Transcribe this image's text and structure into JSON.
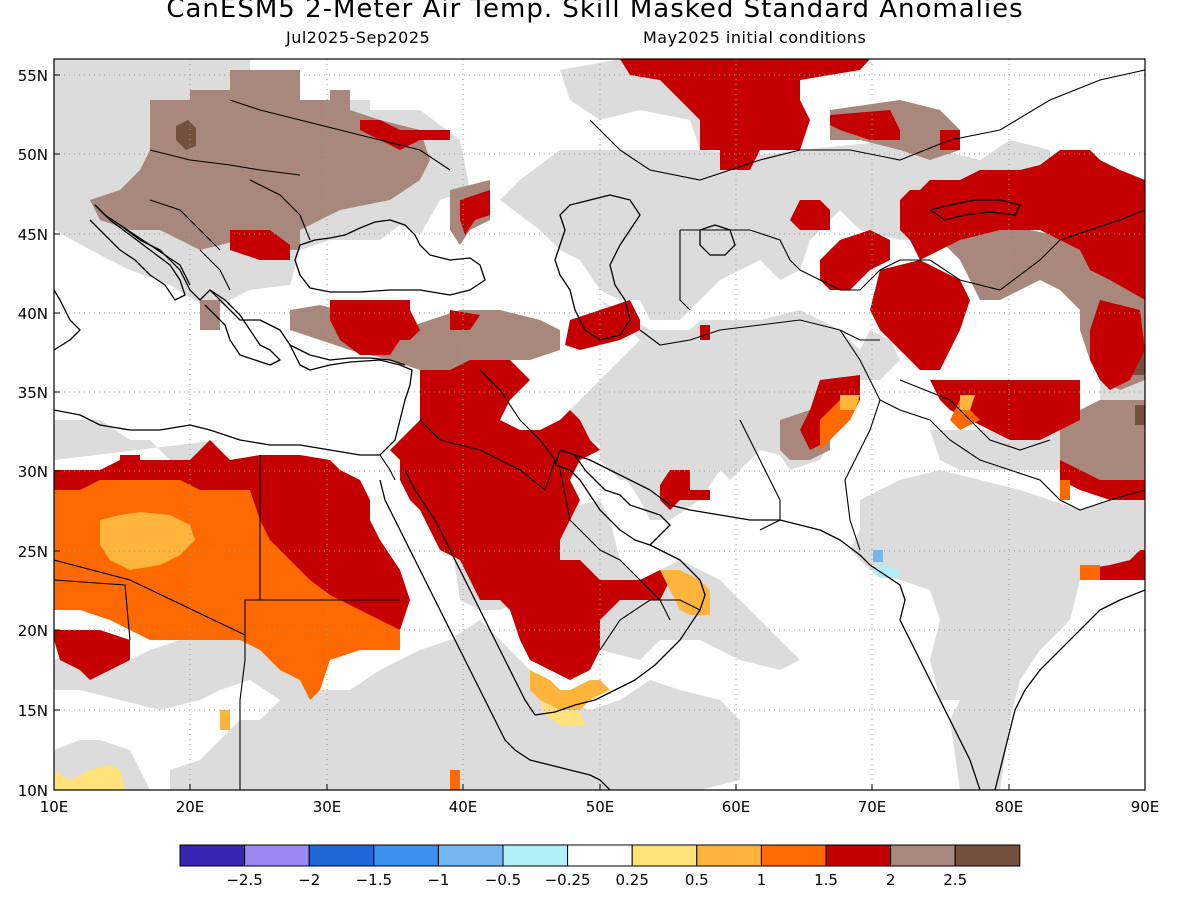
{
  "title": "CanESM5 2-Meter Air Temp. Skill Masked Standard Anomalies",
  "period": "Jul2025-Sep2025",
  "init": "May2025 initial conditions",
  "lat_labels": [
    "55N",
    "50N",
    "45N",
    "40N",
    "35N",
    "30N",
    "25N",
    "20N",
    "15N",
    "10N"
  ],
  "lon_labels": [
    "10E",
    "20E",
    "30E",
    "40E",
    "50E",
    "60E",
    "70E",
    "80E",
    "90E"
  ],
  "legend": {
    "colors": [
      "#3a24b4",
      "#9c88f2",
      "#1f66d8",
      "#3c8fec",
      "#74b6f2",
      "#b2eef6",
      "#ffffff",
      "#ffe27a",
      "#ffb43c",
      "#fe6a00",
      "#c40000",
      "#a8887c",
      "#74503e"
    ],
    "labels": [
      "-2.5",
      "-2",
      "-1.5",
      "-1",
      "-0.5",
      "-0.25",
      "0.25",
      "0.5",
      "1",
      "1.5",
      "2",
      "2.5"
    ]
  },
  "colors": {
    "gray": "#dcdcdc",
    "red": "#c40000",
    "orange": "#fe6a00",
    "light_orange": "#ffb43c",
    "yellow": "#ffe27a",
    "brown": "#a8887c",
    "dark_brown": "#74503e",
    "light_blue": "#b2eef6",
    "blue": "#74b6f2"
  }
}
